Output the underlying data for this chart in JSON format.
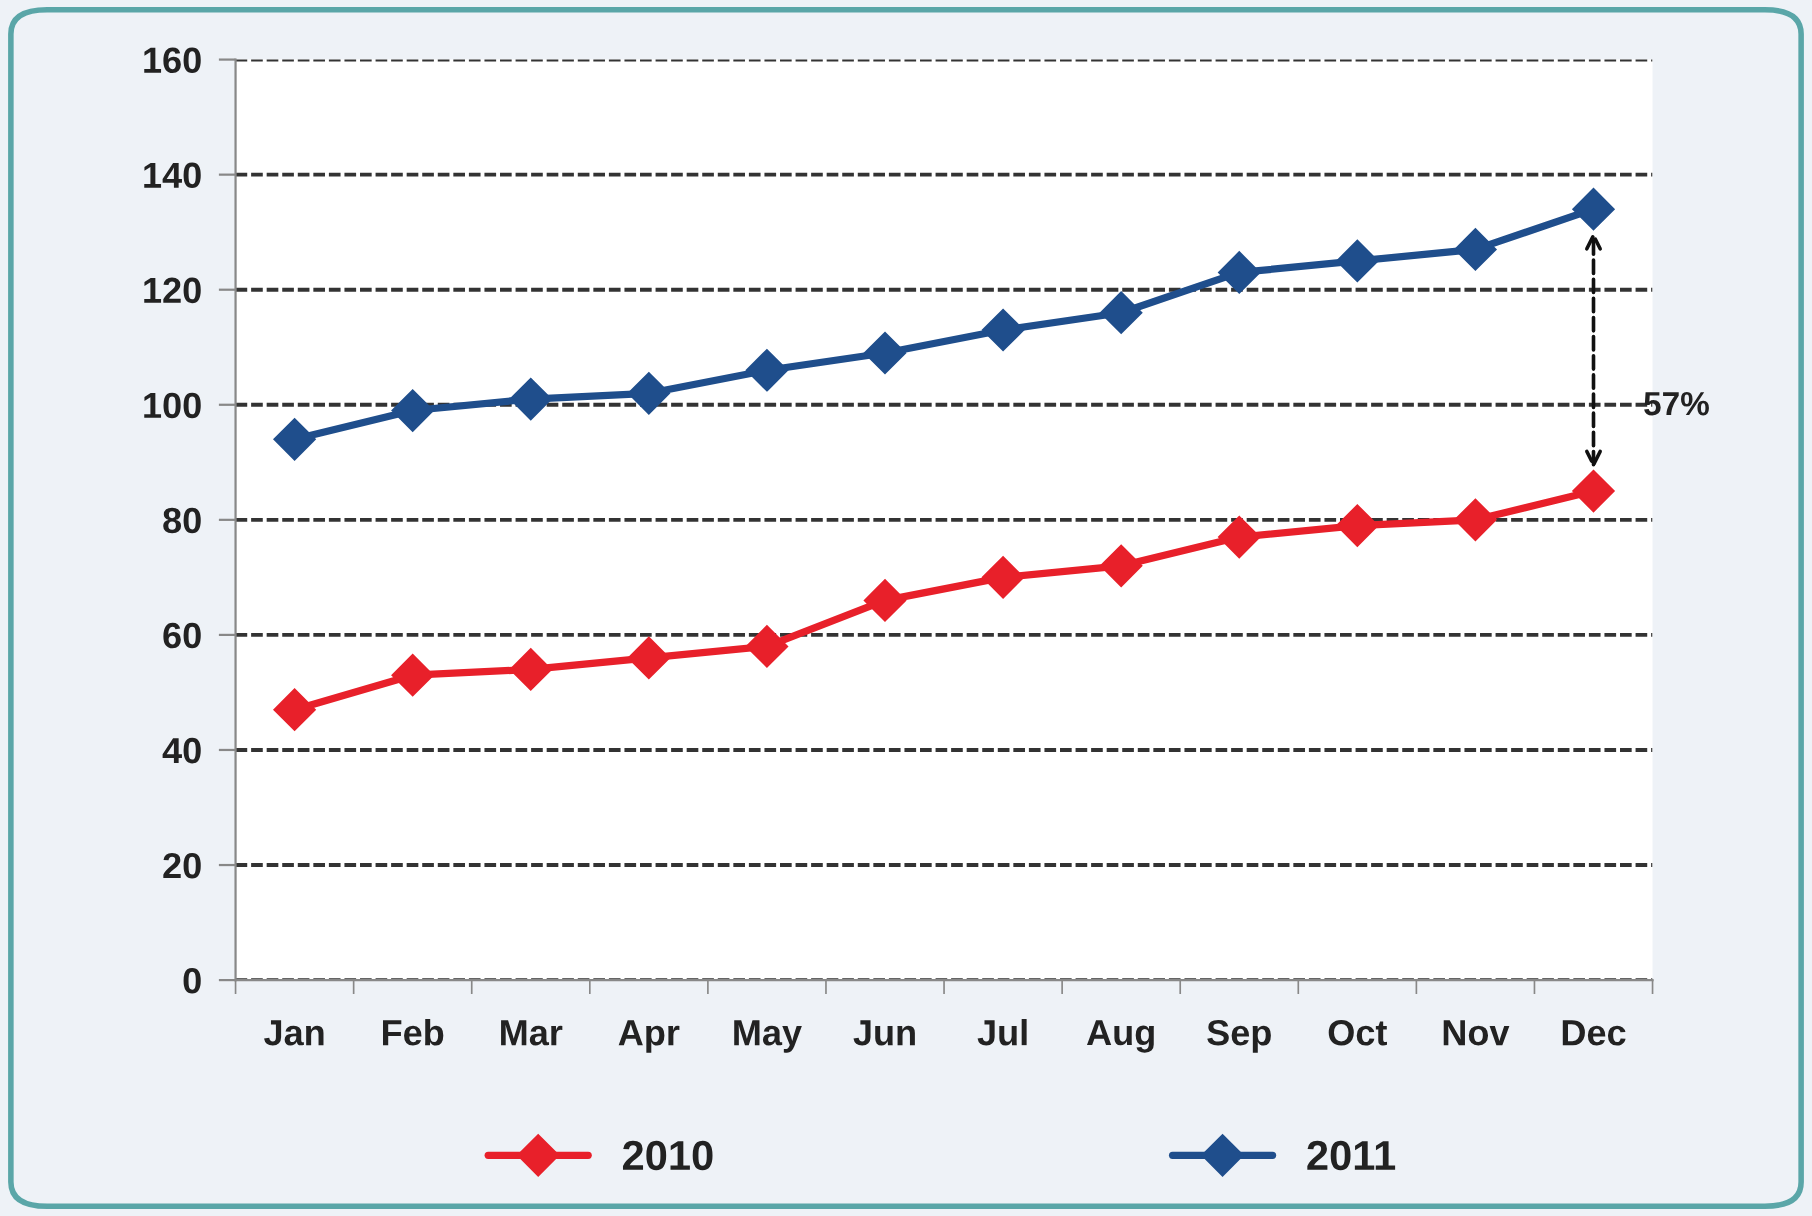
{
  "chart_data": {
    "type": "line",
    "categories": [
      "Jan",
      "Feb",
      "Mar",
      "Apr",
      "May",
      "Jun",
      "Jul",
      "Aug",
      "Sep",
      "Oct",
      "Nov",
      "Dec"
    ],
    "series": [
      {
        "name": "2010",
        "color": "#e8202a",
        "values": [
          47,
          53,
          54,
          56,
          58,
          66,
          70,
          72,
          77,
          79,
          80,
          85
        ]
      },
      {
        "name": "2011",
        "color": "#1f4e8c",
        "values": [
          94,
          99,
          101,
          102,
          106,
          109,
          113,
          116,
          123,
          125,
          127,
          134
        ]
      }
    ],
    "ylim": [
      0,
      160
    ],
    "yticks": [
      0,
      20,
      40,
      60,
      80,
      100,
      120,
      140,
      160
    ],
    "grid": "y",
    "legend": "bottom",
    "marker": "diamond",
    "line_style": "solid",
    "annotations": [
      "57%"
    ]
  }
}
